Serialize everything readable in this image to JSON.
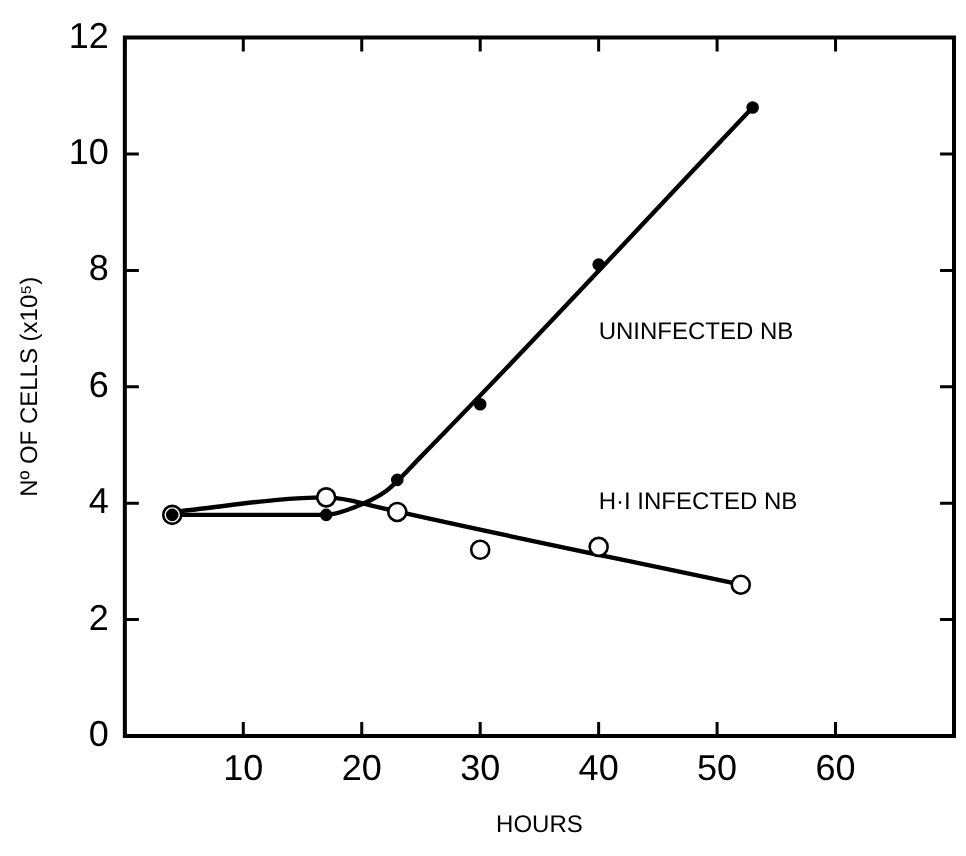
{
  "chart_data": {
    "type": "scatter",
    "xlabel": "HOURS",
    "ylabel": "Nº OF CELLS (x10⁵)",
    "xlim": [
      0,
      70
    ],
    "xticks": [
      {
        "value": 0,
        "label": null
      },
      10,
      20,
      30,
      40,
      50,
      60,
      {
        "value": 70,
        "label": null
      }
    ],
    "ylim": [
      0,
      12
    ],
    "yticks": [
      0,
      2,
      4,
      6,
      8,
      10,
      12
    ],
    "grid": false,
    "legend": false,
    "marker": "circle",
    "series": [
      {
        "name": "UNINFECTED NB",
        "color": "#000000",
        "x": [
          4,
          17,
          23,
          30,
          40,
          53
        ],
        "values": [
          3.8,
          3.8,
          4.4,
          5.7,
          8.1,
          10.8
        ]
      },
      {
        "name": "H·I INFECTED NB",
        "color": "#000000",
        "x": [
          4,
          17,
          23,
          30,
          40,
          52
        ],
        "values": [
          3.8,
          4.1,
          3.85,
          3.2,
          3.25,
          2.6
        ]
      },
      {
        "type": "line",
        "color": "#000000",
        "marker": "none",
        "line_style": "solid",
        "x": [
          4,
          17,
          19,
          22,
          25,
          53
        ],
        "values": [
          3.8,
          3.8,
          3.9,
          4.2,
          4.8,
          10.8
        ]
      },
      {
        "type": "line",
        "color": "#000000",
        "marker": "none",
        "line_style": "solid",
        "x": [
          4,
          17,
          19,
          21,
          52
        ],
        "values": [
          3.85,
          4.1,
          4.05,
          3.95,
          2.6
        ]
      }
    ]
  }
}
